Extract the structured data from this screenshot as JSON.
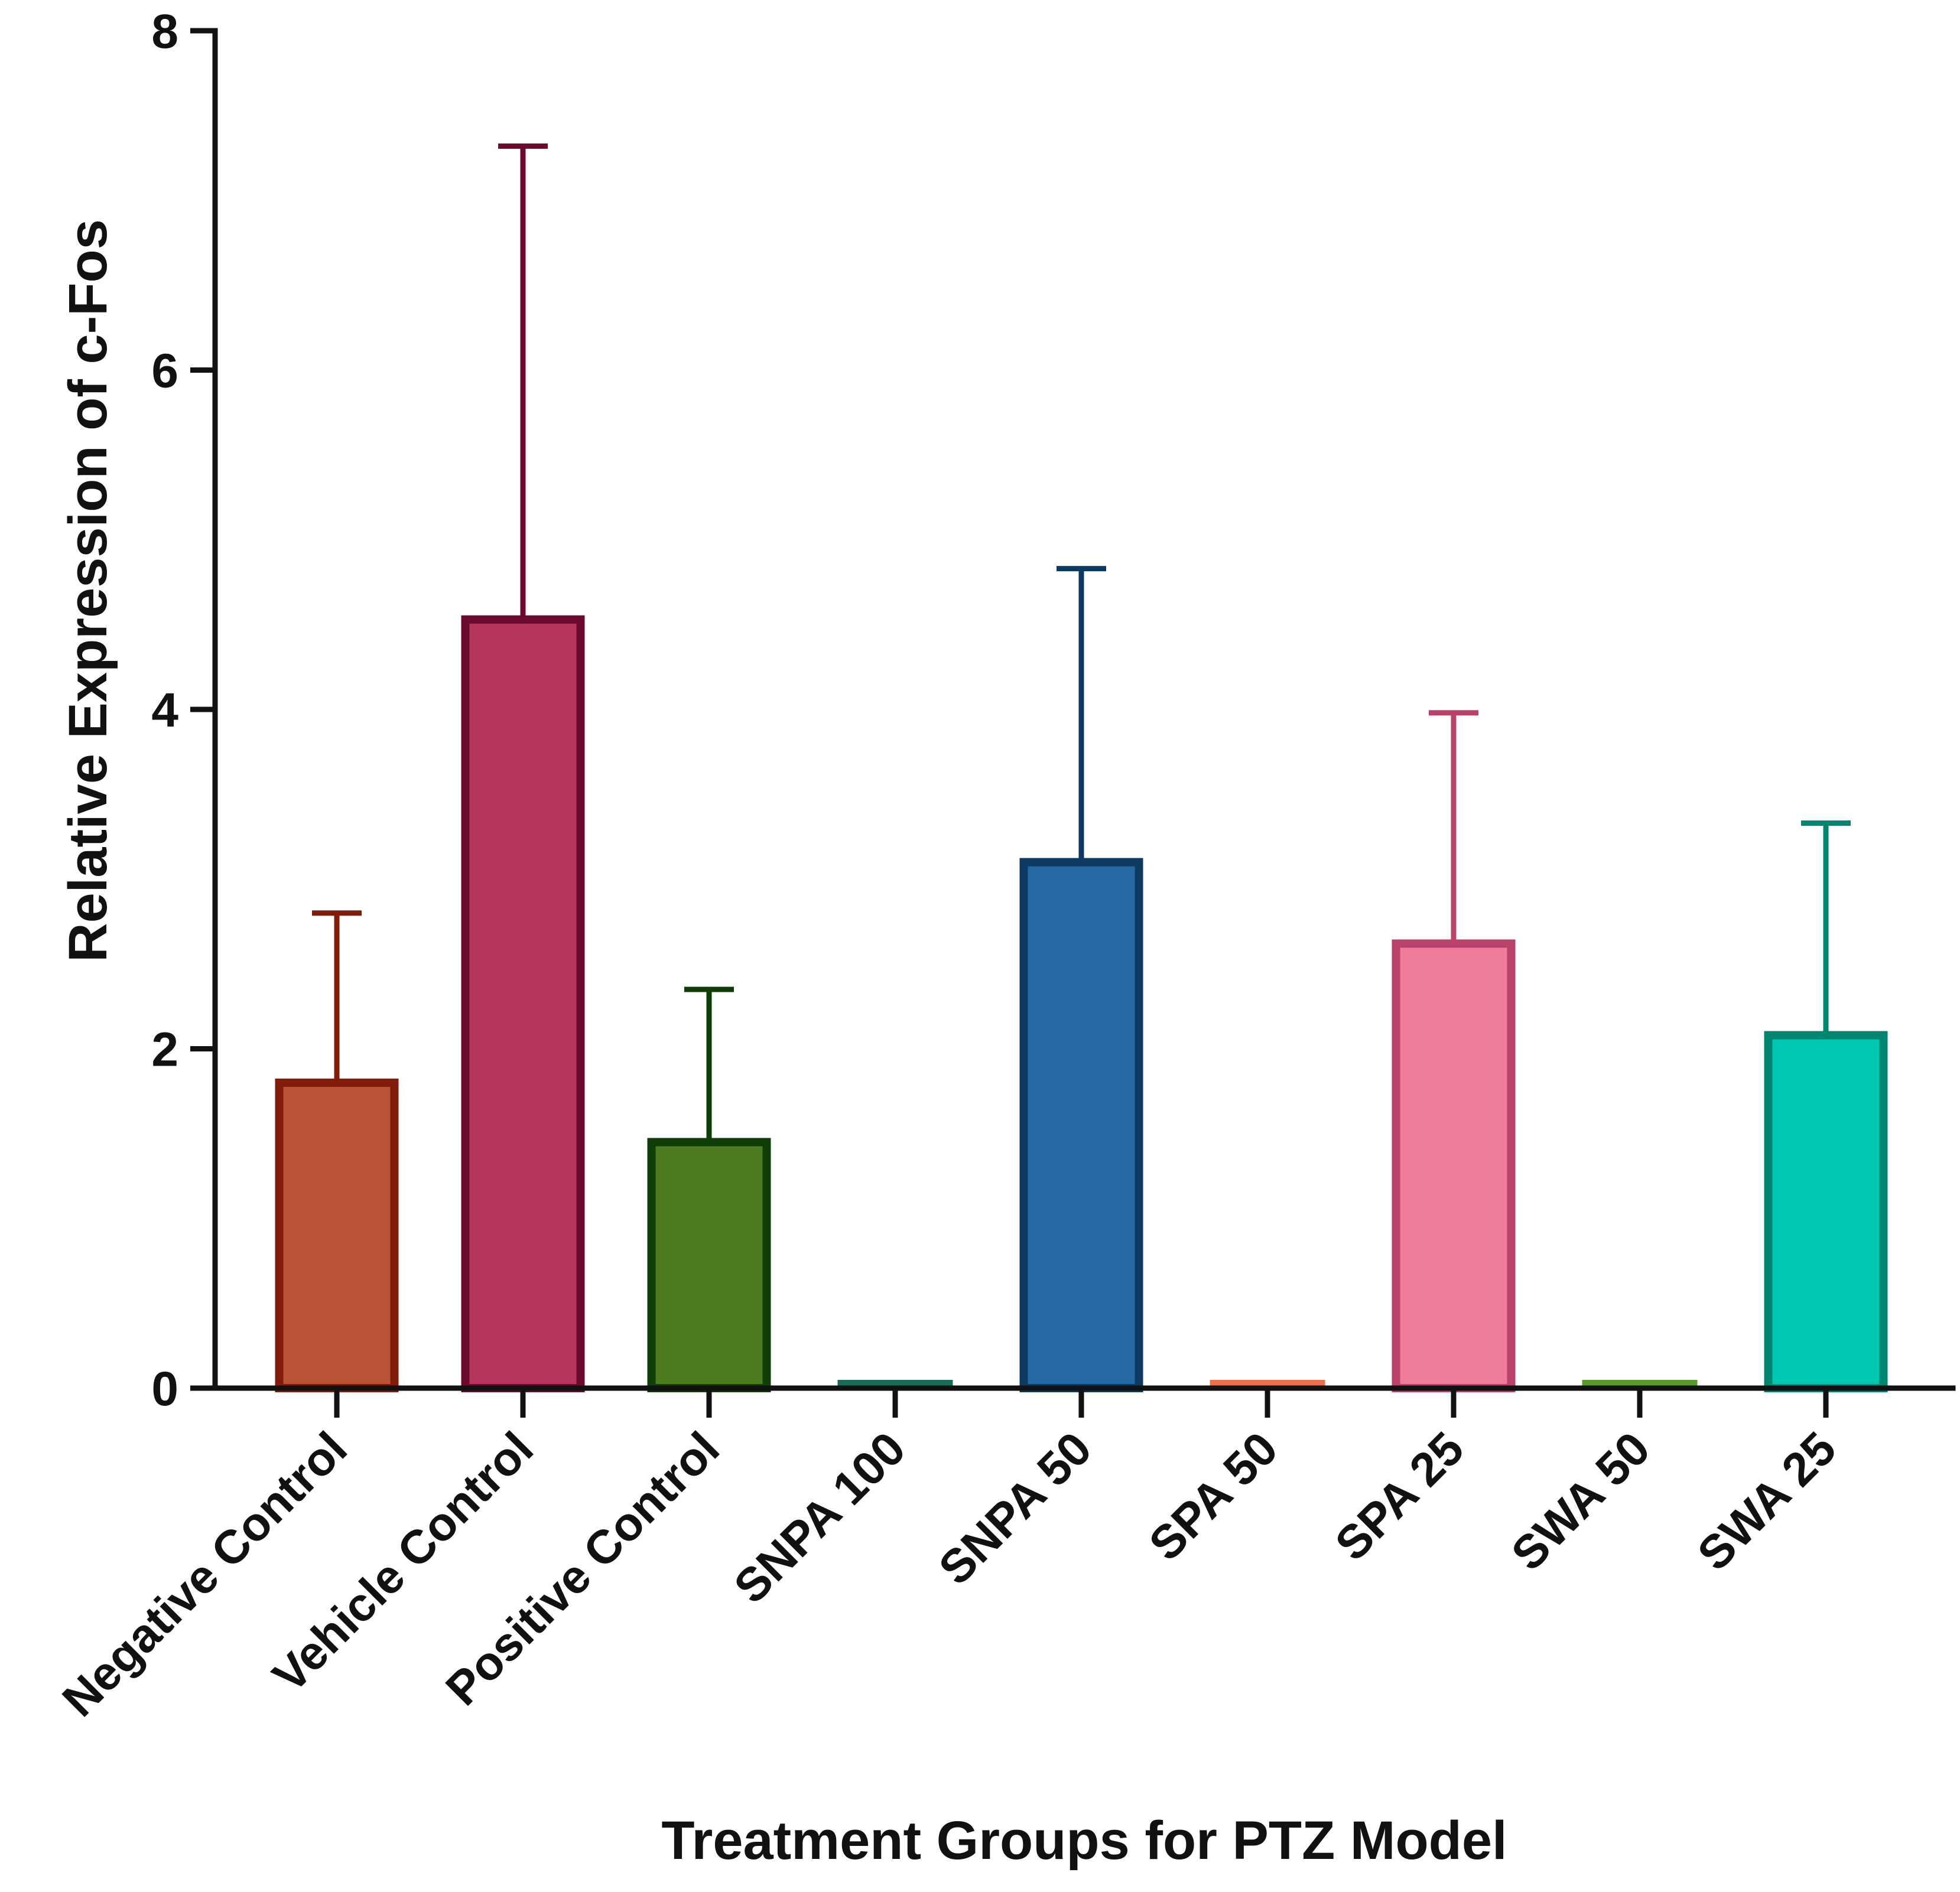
{
  "chart_data": {
    "type": "bar",
    "title": "",
    "xlabel": "Treatment Groups for PTZ Model",
    "ylabel": "Relative Expression of c-Fos",
    "ylim": [
      0,
      8
    ],
    "yticks": [
      "0",
      "2",
      "4",
      "6",
      "8"
    ],
    "grid": false,
    "categories": [
      "Negative Control",
      "Vehicle Control",
      "Positive Control",
      "SNPA 100",
      "SNPA 50",
      "SPA 50",
      "SPA 25",
      "SWA 50",
      "SWA 25"
    ],
    "values": [
      1.8,
      4.53,
      1.45,
      0.01,
      3.1,
      0.02,
      2.62,
      0.005,
      2.08
    ],
    "error_upper": [
      2.8,
      7.32,
      2.35,
      0.01,
      4.83,
      0.02,
      3.98,
      0.005,
      3.33
    ],
    "fill_colors": [
      "#b85335",
      "#b5375e",
      "#4f7b20",
      "#1a6b5a",
      "#2468a4",
      "#e8704a",
      "#f07c9b",
      "#5a9a2a",
      "#00c8b0"
    ],
    "edge_colors": [
      "#821c0a",
      "#6b0a2e",
      "#0e3d08",
      "#0b4a3a",
      "#0e3a62",
      "#d05a35",
      "#b9426a",
      "#3d6a10",
      "#008570"
    ]
  }
}
